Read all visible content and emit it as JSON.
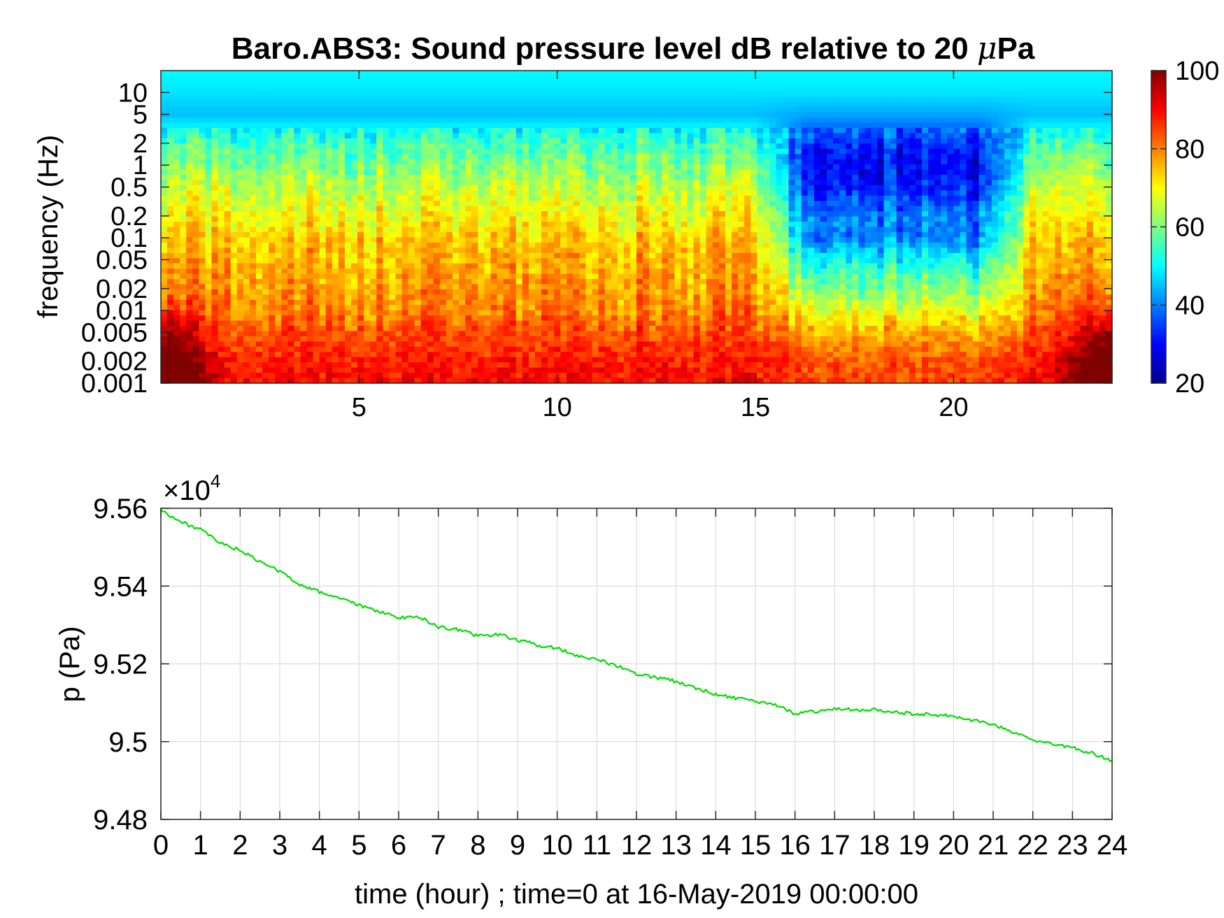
{
  "chart_data": [
    {
      "type": "heatmap",
      "title_main": "Baro.ABS3: Sound pressure level dB relative to 20 ",
      "title_mu": "μ",
      "title_unit": "Pa",
      "ylabel": "frequency (Hz)",
      "y_scale": "log",
      "ylim": [
        0.001,
        20
      ],
      "xlim": [
        0,
        24
      ],
      "y_ticks": [
        "10",
        "5",
        "2",
        "1",
        "0.5",
        "0.2",
        "0.1",
        "0.05",
        "0.02",
        "0.01",
        "0.005",
        "0.002",
        "0.001"
      ],
      "y_tick_values": [
        10,
        5,
        2,
        1,
        0.5,
        0.2,
        0.1,
        0.05,
        0.02,
        0.01,
        0.005,
        0.002,
        0.001
      ],
      "x_ticks": [
        "5",
        "10",
        "15",
        "20"
      ],
      "x_tick_values": [
        5,
        10,
        15,
        20
      ],
      "colormap": "jet",
      "colorbar": {
        "min": 20,
        "max": 100,
        "ticks": [
          "100",
          "80",
          "60",
          "40",
          "20"
        ],
        "tick_values": [
          100,
          80,
          60,
          40,
          20
        ]
      },
      "level_profile_db": {
        "frequency_hz": [
          0.001,
          0.002,
          0.005,
          0.01,
          0.02,
          0.05,
          0.1,
          0.2,
          0.5,
          1,
          2,
          5,
          10,
          20
        ],
        "hours_0_to_15": [
          90,
          88,
          84,
          80,
          78,
          76,
          74,
          70,
          65,
          60,
          55,
          45,
          48,
          50
        ],
        "hours_16_to_21": [
          85,
          83,
          76,
          68,
          60,
          50,
          40,
          40,
          32,
          30,
          33,
          43,
          48,
          50
        ]
      }
    },
    {
      "type": "line",
      "xlabel": "time (hour) ; time=0 at 16-May-2019 00:00:00",
      "ylabel": "p (Pa)",
      "exponent_base": "×10",
      "exponent_power": "4",
      "xlim": [
        0,
        24
      ],
      "ylim": [
        9.48,
        9.56
      ],
      "y_ticks": [
        "9.56",
        "9.54",
        "9.52",
        "9.5",
        "9.48"
      ],
      "y_tick_values": [
        9.56,
        9.54,
        9.52,
        9.5,
        9.48
      ],
      "x_ticks": [
        "0",
        "1",
        "2",
        "3",
        "4",
        "5",
        "6",
        "7",
        "8",
        "9",
        "10",
        "11",
        "12",
        "13",
        "14",
        "15",
        "16",
        "17",
        "18",
        "19",
        "20",
        "21",
        "22",
        "23",
        "24"
      ],
      "grid": true,
      "series": [
        {
          "color": "#00dd00",
          "x": [
            0,
            0.5,
            1,
            1.5,
            2,
            2.5,
            3,
            3.5,
            4,
            4.5,
            5,
            5.5,
            6,
            6.5,
            7,
            7.5,
            8,
            8.5,
            9,
            9.5,
            10,
            10.5,
            11,
            11.5,
            12,
            12.5,
            13,
            13.5,
            14,
            14.5,
            15,
            15.5,
            16,
            16.5,
            17,
            17.5,
            18,
            18.5,
            19,
            19.5,
            20,
            20.5,
            21,
            21.5,
            22,
            22.5,
            23,
            23.5,
            24
          ],
          "y": [
            9.5596,
            9.5565,
            9.5545,
            9.551,
            9.5492,
            9.5462,
            9.5438,
            9.5405,
            9.5385,
            9.537,
            9.535,
            9.5335,
            9.5318,
            9.5322,
            9.5295,
            9.5288,
            9.5272,
            9.5275,
            9.5262,
            9.5248,
            9.524,
            9.5222,
            9.5212,
            9.5195,
            9.5175,
            9.5165,
            9.5155,
            9.5138,
            9.5122,
            9.5112,
            9.5102,
            9.5095,
            9.5072,
            9.5078,
            9.5085,
            9.5082,
            9.5082,
            9.5075,
            9.5072,
            9.507,
            9.5065,
            9.5055,
            9.5045,
            9.5025,
            9.5005,
            9.4993,
            9.4985,
            9.497,
            9.495
          ]
        }
      ]
    }
  ]
}
